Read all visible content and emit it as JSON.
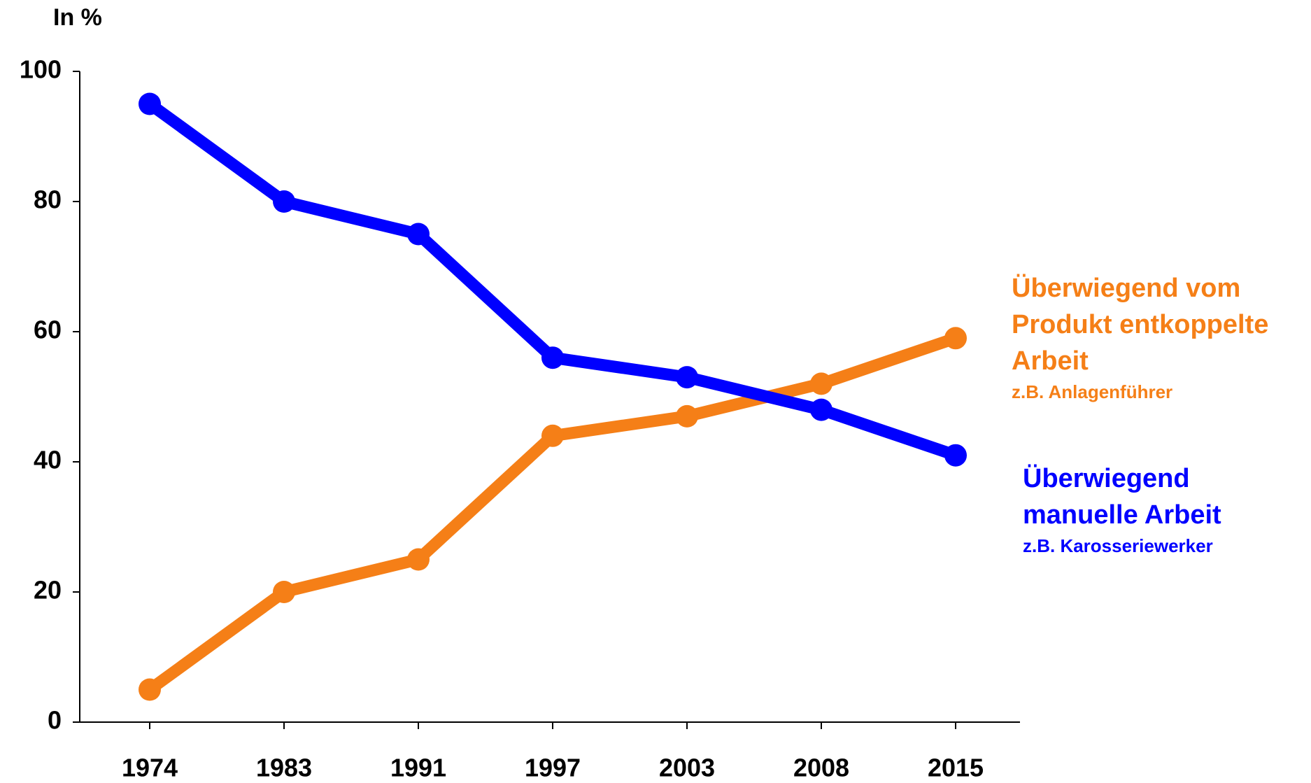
{
  "chart_data": {
    "type": "line",
    "y_axis_label": "In %",
    "categories": [
      "1974",
      "1983",
      "1991",
      "1997",
      "2003",
      "2008",
      "2015"
    ],
    "ylim": [
      0,
      100
    ],
    "yticks": [
      0,
      20,
      40,
      60,
      80,
      100
    ],
    "grid": false,
    "series": [
      {
        "name_lines": [
          "Überwiegend vom",
          "Produkt entkoppelte",
          "Arbeit"
        ],
        "example": "z.B. Anlagenführer",
        "color": "#f57f17",
        "values": [
          5,
          20,
          25,
          44,
          47,
          52,
          59
        ]
      },
      {
        "name_lines": [
          "Überwiegend",
          "manuelle Arbeit"
        ],
        "example": "z.B. Karosseriewerker",
        "color": "#0000ff",
        "values": [
          95,
          80,
          75,
          56,
          53,
          48,
          41
        ]
      }
    ]
  }
}
